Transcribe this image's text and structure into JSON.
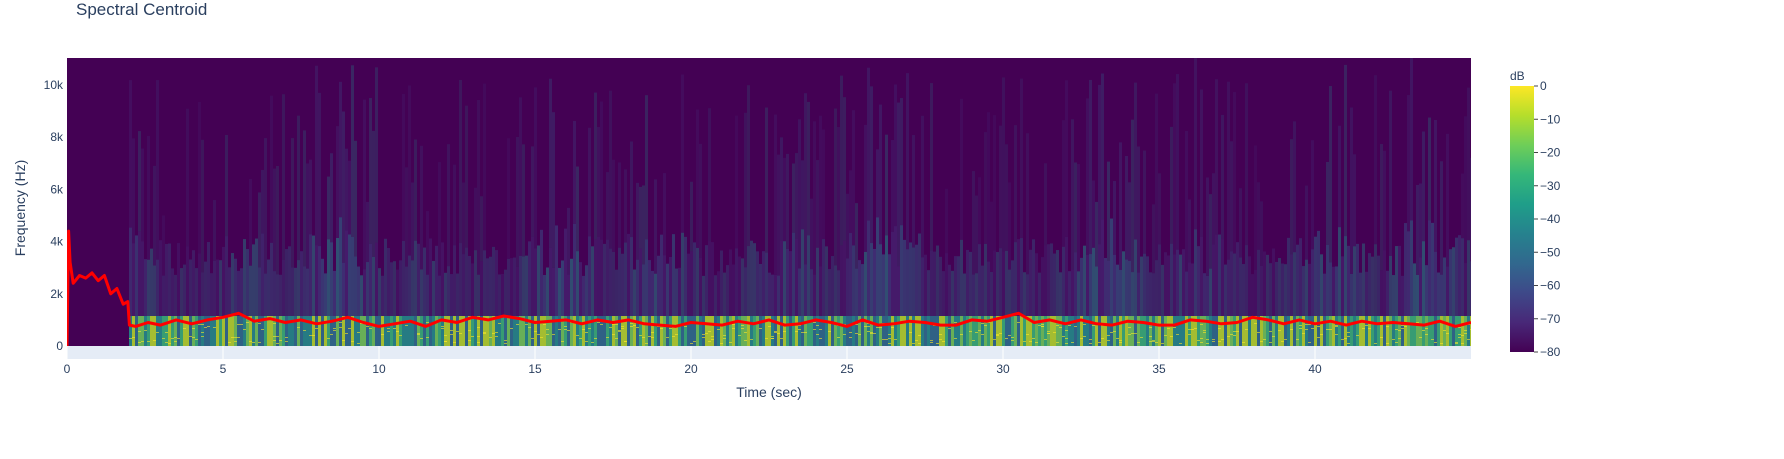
{
  "chart_data": {
    "type": "heatmap",
    "title": "Spectral Centroid",
    "xlabel": "Time (sec)",
    "ylabel": "Frequency (Hz)",
    "xlim": [
      0,
      45
    ],
    "ylim": [
      0,
      11025
    ],
    "x_ticks": [
      0,
      5,
      10,
      15,
      20,
      25,
      30,
      35,
      40
    ],
    "x_tick_labels": [
      "0",
      "5",
      "10",
      "15",
      "20",
      "25",
      "30",
      "35",
      "40"
    ],
    "y_ticks": [
      0,
      2000,
      4000,
      6000,
      8000,
      10000
    ],
    "y_tick_labels": [
      "0",
      "2k",
      "4k",
      "6k",
      "8k",
      "10k"
    ],
    "colorbar": {
      "title": "dB",
      "range": [
        -80,
        0
      ],
      "ticks": [
        0,
        -10,
        -20,
        -30,
        -40,
        -50,
        -60,
        -70,
        -80
      ],
      "tick_labels": [
        "0",
        "−10",
        "−20",
        "−30",
        "−40",
        "−50",
        "−60",
        "−70",
        "−80"
      ],
      "colorscale": [
        "#440154",
        "#482878",
        "#3e4989",
        "#31688e",
        "#26828e",
        "#1f9e89",
        "#35b779",
        "#6ece58",
        "#b5de2b",
        "#fde725"
      ]
    },
    "heatmap_description": "Spectrogram: silent/dark before ~2 s; energy concentrated below ~1 kHz (bright), sparse higher-frequency content up to ~10 kHz across the track.",
    "series": [
      {
        "color": "#ff0000",
        "x": [
          0,
          0.05,
          0.1,
          0.2,
          0.4,
          0.6,
          0.8,
          1.0,
          1.2,
          1.4,
          1.6,
          1.8,
          1.95,
          2.0,
          2.2,
          2.6,
          3.0,
          3.5,
          4.0,
          4.5,
          5.0,
          5.5,
          6.0,
          6.5,
          7.0,
          7.5,
          8.0,
          8.5,
          9.0,
          9.5,
          10.0,
          10.5,
          11.0,
          11.5,
          12.0,
          12.5,
          13.0,
          13.5,
          14.0,
          14.5,
          15.0,
          15.5,
          16.0,
          16.5,
          17.0,
          17.5,
          18.0,
          18.5,
          19.0,
          19.5,
          20.0,
          20.5,
          21.0,
          21.5,
          22.0,
          22.5,
          23.0,
          23.5,
          24.0,
          24.5,
          25.0,
          25.5,
          26.0,
          26.5,
          27.0,
          27.5,
          28.0,
          28.5,
          29.0,
          29.5,
          30.0,
          30.5,
          31.0,
          31.5,
          32.0,
          32.5,
          33.0,
          33.5,
          34.0,
          34.5,
          35.0,
          35.5,
          36.0,
          36.5,
          37.0,
          37.5,
          38.0,
          38.5,
          39.0,
          39.5,
          40.0,
          40.5,
          41.0,
          41.5,
          42.0,
          42.5,
          43.0,
          43.5,
          44.0,
          44.5,
          45.0
        ],
        "values": [
          0,
          4400,
          3200,
          2400,
          2700,
          2600,
          2800,
          2500,
          2700,
          2000,
          2200,
          1600,
          1700,
          800,
          750,
          900,
          800,
          1000,
          850,
          1000,
          1100,
          1250,
          950,
          1050,
          900,
          1000,
          850,
          950,
          1100,
          900,
          750,
          850,
          950,
          750,
          1000,
          900,
          1100,
          1000,
          1150,
          1050,
          900,
          950,
          1000,
          850,
          1000,
          900,
          1000,
          850,
          800,
          750,
          900,
          850,
          800,
          950,
          850,
          1000,
          800,
          850,
          1000,
          900,
          750,
          1000,
          800,
          850,
          950,
          900,
          800,
          800,
          1000,
          950,
          1100,
          1250,
          900,
          1000,
          850,
          1000,
          850,
          800,
          950,
          900,
          800,
          800,
          1000,
          950,
          850,
          900,
          1100,
          1000,
          850,
          1000,
          850,
          950,
          800,
          950,
          850,
          900,
          850,
          800,
          950,
          750,
          900
        ]
      }
    ]
  }
}
